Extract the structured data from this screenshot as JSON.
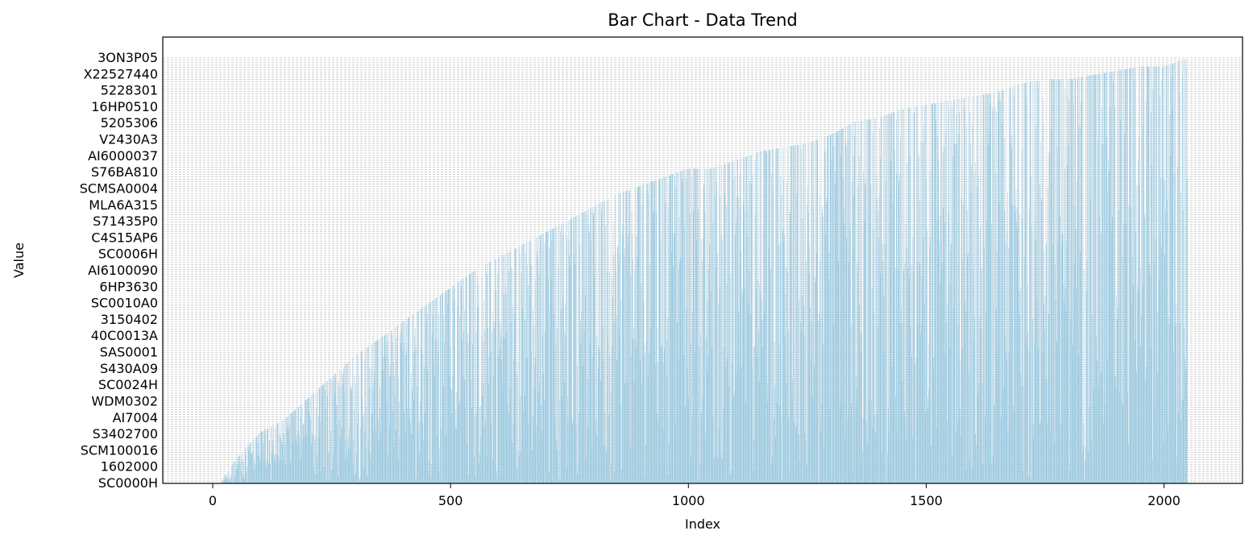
{
  "chart_data": {
    "type": "bar",
    "title": "Bar Chart - Data Trend",
    "xlabel": "Index",
    "ylabel": "Value",
    "xlim": [
      -105,
      2165
    ],
    "x_ticks": [
      0,
      500,
      1000,
      1500,
      2000
    ],
    "bar_count": 2050,
    "bar_color": "#92c5de",
    "y_axis": "categorical",
    "y_category_count": 180,
    "grid": "horizontal dashed",
    "visible_y_tick_labels": [
      "3ON3P05",
      "X22527440",
      "5228301",
      "16HP0510",
      "5205306",
      "V2430A3",
      "AI6000037",
      "S76BA810",
      "SCMSA0004",
      "MLA6A315",
      "S71435P0",
      "C4S15AP6",
      "SC0006H",
      "AI6100090",
      "6HP3630",
      "SC0010A0",
      "3150402",
      "40C0013A",
      "SAS0001",
      "S430A09",
      "SC0024H",
      "WDM0302",
      "AI7004",
      "S3402700",
      "SCM100016",
      "1602000",
      "SC0000H"
    ],
    "envelope": [
      [
        15,
        0
      ],
      [
        50,
        0.06
      ],
      [
        100,
        0.12
      ],
      [
        150,
        0.15
      ],
      [
        200,
        0.2
      ],
      [
        250,
        0.25
      ],
      [
        300,
        0.3
      ],
      [
        350,
        0.34
      ],
      [
        400,
        0.38
      ],
      [
        450,
        0.42
      ],
      [
        500,
        0.46
      ],
      [
        550,
        0.5
      ],
      [
        600,
        0.53
      ],
      [
        650,
        0.56
      ],
      [
        700,
        0.59
      ],
      [
        750,
        0.62
      ],
      [
        800,
        0.65
      ],
      [
        850,
        0.68
      ],
      [
        900,
        0.7
      ],
      [
        950,
        0.72
      ],
      [
        1000,
        0.74
      ],
      [
        1050,
        0.74
      ],
      [
        1100,
        0.76
      ],
      [
        1150,
        0.78
      ],
      [
        1200,
        0.79
      ],
      [
        1250,
        0.8
      ],
      [
        1300,
        0.82
      ],
      [
        1350,
        0.85
      ],
      [
        1400,
        0.86
      ],
      [
        1450,
        0.88
      ],
      [
        1500,
        0.89
      ],
      [
        1550,
        0.9
      ],
      [
        1600,
        0.91
      ],
      [
        1650,
        0.92
      ],
      [
        1700,
        0.94
      ],
      [
        1750,
        0.95
      ],
      [
        1800,
        0.95
      ],
      [
        1850,
        0.96
      ],
      [
        1900,
        0.97
      ],
      [
        1950,
        0.98
      ],
      [
        2000,
        0.98
      ],
      [
        2050,
        1.0
      ]
    ]
  }
}
